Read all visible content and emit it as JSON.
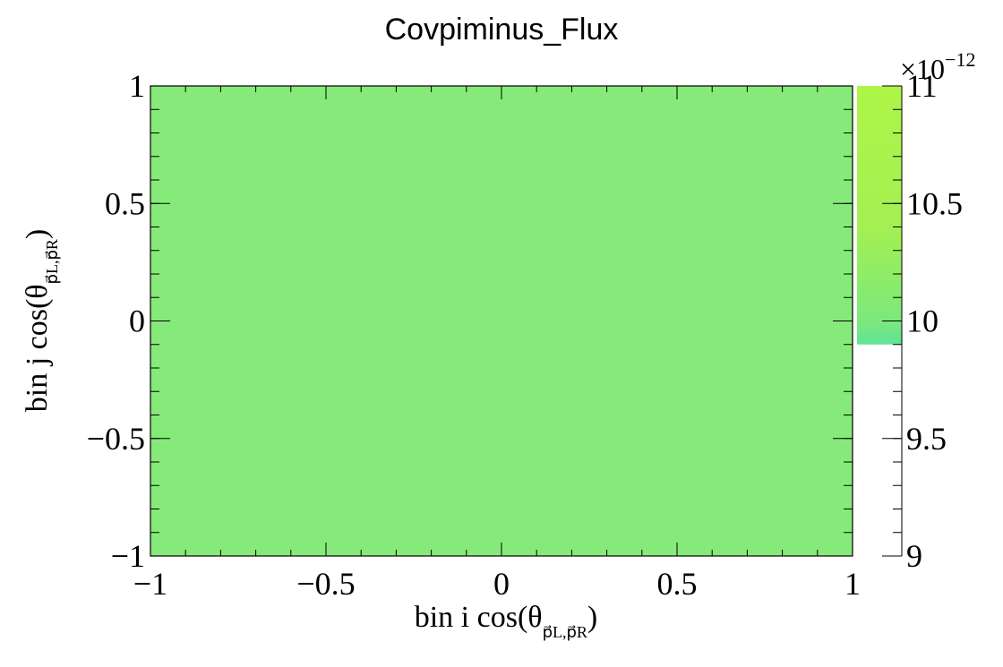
{
  "chart_data": {
    "type": "heatmap",
    "title": "Covpiminus_Flux",
    "xlabel": {
      "prefix": "bin i cos(θ",
      "sub": "p⃗L,p⃗R",
      "suffix": ")"
    },
    "ylabel": {
      "prefix": "bin j cos(θ",
      "sub": "p⃗L,p⃗R",
      "suffix": ")"
    },
    "xlim": [
      -1,
      1
    ],
    "ylim": [
      -1,
      1
    ],
    "x_ticks": [
      "−1",
      "−0.5",
      "0",
      "0.5",
      "1"
    ],
    "x_tick_values": [
      -1,
      -0.5,
      0,
      0.5,
      1
    ],
    "y_ticks": [
      "−1",
      "−0.5",
      "0",
      "0.5",
      "1"
    ],
    "y_tick_values": [
      -1,
      -0.5,
      0,
      0.5,
      1
    ],
    "cells": [
      {
        "x": [
          -1,
          1
        ],
        "y": [
          -1,
          1
        ],
        "value": 1e-11,
        "color": "#86ea7a"
      }
    ],
    "colorbar": {
      "range": [
        9,
        11
      ],
      "tick_labels": [
        "9",
        "9.5",
        "10",
        "10.5",
        "11"
      ],
      "tick_values": [
        9,
        9.5,
        10,
        10.5,
        11
      ],
      "multiplier": "×10",
      "exponent": "−12",
      "gradient": [
        {
          "value": 9.9,
          "color": "#5fe39a"
        },
        {
          "value": 10.0,
          "color": "#7ce87c"
        },
        {
          "value": 10.4,
          "color": "#a3f052"
        },
        {
          "value": 11.0,
          "color": "#aef548"
        }
      ]
    },
    "grid": false
  }
}
